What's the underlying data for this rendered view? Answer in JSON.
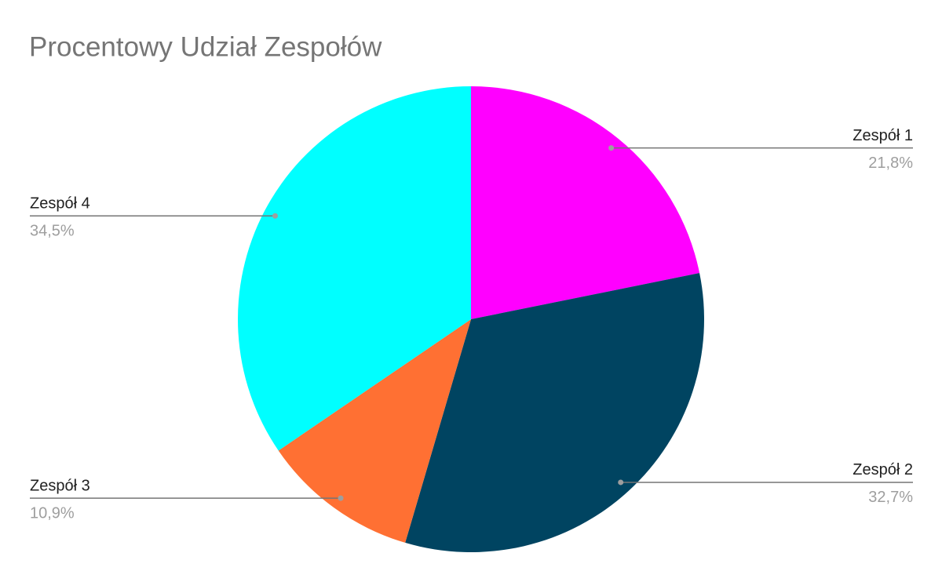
{
  "chart_data": {
    "type": "pie",
    "title": "Procentowy Udział Zespołów",
    "categories": [
      "Zespół 1",
      "Zespół 2",
      "Zespół 3",
      "Zespół 4"
    ],
    "values": [
      21.8,
      32.7,
      10.9,
      34.5
    ],
    "value_labels": [
      "21,8%",
      "32,7%",
      "10,9%",
      "34,5%"
    ],
    "colors": [
      "#ff00ff",
      "#004461",
      "#ff7033",
      "#00ffff"
    ]
  }
}
